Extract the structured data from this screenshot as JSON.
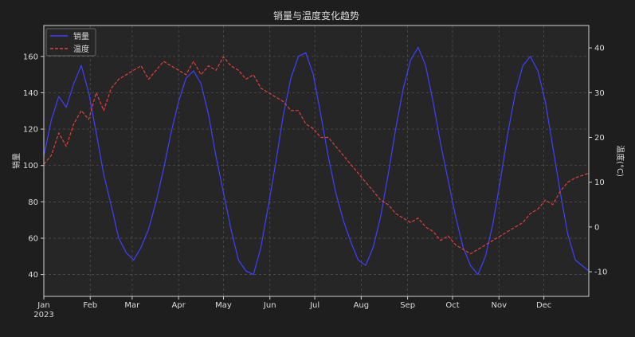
{
  "chart_data": {
    "type": "line",
    "title": "销量与温度变化趋势",
    "xlabel": "",
    "ylabel": "销量",
    "y2label": "温度(°C)",
    "grid": true,
    "legend_position": "top-left",
    "x_ticks": [
      "Jan",
      "Feb",
      "Mar",
      "Apr",
      "May",
      "Jun",
      "Jul",
      "Aug",
      "Sep",
      "Oct",
      "Nov",
      "Dec"
    ],
    "x_year_label": "2023",
    "ylim": [
      28,
      177
    ],
    "y_ticks": [
      40,
      60,
      80,
      100,
      120,
      140,
      160
    ],
    "y2lim": [
      -15.5,
      45
    ],
    "y2_ticks": [
      -10,
      0,
      10,
      20,
      30,
      40
    ],
    "colors": {
      "sales": "#4040ff",
      "temp": "#e04040",
      "background": "#262626",
      "page": "#1e1e1e"
    },
    "series": [
      {
        "name": "销量",
        "axis": "left",
        "style": "solid",
        "x_day": [
          0,
          5,
          10,
          15,
          20,
          25,
          30,
          35,
          40,
          45,
          50,
          55,
          60,
          65,
          70,
          75,
          80,
          85,
          90,
          95,
          100,
          105,
          110,
          115,
          120,
          125,
          130,
          135,
          140,
          145,
          150,
          155,
          160,
          165,
          170,
          175,
          180,
          185,
          190,
          195,
          200,
          205,
          210,
          215,
          220,
          225,
          230,
          235,
          240,
          245,
          250,
          255,
          260,
          265,
          270,
          275,
          280,
          285,
          290,
          295,
          300,
          305,
          310,
          315,
          320,
          325,
          330,
          335,
          340,
          345,
          350,
          355,
          364
        ],
        "values": [
          105,
          125,
          138,
          132,
          145,
          155,
          140,
          118,
          95,
          78,
          60,
          52,
          48,
          55,
          65,
          80,
          98,
          118,
          135,
          148,
          152,
          145,
          128,
          105,
          85,
          65,
          48,
          42,
          40,
          55,
          78,
          102,
          128,
          148,
          160,
          162,
          150,
          128,
          105,
          85,
          70,
          58,
          48,
          45,
          55,
          72,
          95,
          120,
          142,
          158,
          165,
          155,
          135,
          112,
          92,
          72,
          55,
          45,
          40,
          50,
          68,
          92,
          118,
          140,
          155,
          160,
          152,
          135,
          110,
          85,
          62,
          48,
          42
        ]
      },
      {
        "name": "温度",
        "axis": "right",
        "style": "dashed",
        "x_day": [
          0,
          5,
          10,
          15,
          20,
          25,
          30,
          35,
          40,
          45,
          50,
          55,
          60,
          65,
          70,
          75,
          80,
          85,
          90,
          95,
          100,
          105,
          110,
          115,
          120,
          125,
          130,
          135,
          140,
          145,
          150,
          155,
          160,
          165,
          170,
          175,
          180,
          185,
          190,
          195,
          200,
          205,
          210,
          215,
          220,
          225,
          230,
          235,
          240,
          245,
          250,
          255,
          260,
          265,
          270,
          275,
          280,
          285,
          290,
          295,
          300,
          305,
          310,
          315,
          320,
          325,
          330,
          335,
          340,
          345,
          350,
          355,
          364
        ],
        "values": [
          14,
          16,
          21,
          18,
          23,
          26,
          24,
          30,
          26,
          31,
          33,
          34,
          35,
          36,
          33,
          35,
          37,
          36,
          35,
          34,
          37,
          34,
          36,
          35,
          38,
          36,
          35,
          33,
          34,
          31,
          30,
          29,
          28,
          26,
          26,
          23,
          22,
          20,
          20,
          18,
          16,
          14,
          12,
          10,
          8,
          6,
          5,
          3,
          2,
          1,
          2,
          0,
          -1,
          -3,
          -2,
          -4,
          -5,
          -6,
          -5,
          -4,
          -3,
          -2,
          -1,
          0,
          1,
          3,
          4,
          6,
          5,
          8,
          10,
          11,
          12
        ]
      }
    ]
  }
}
